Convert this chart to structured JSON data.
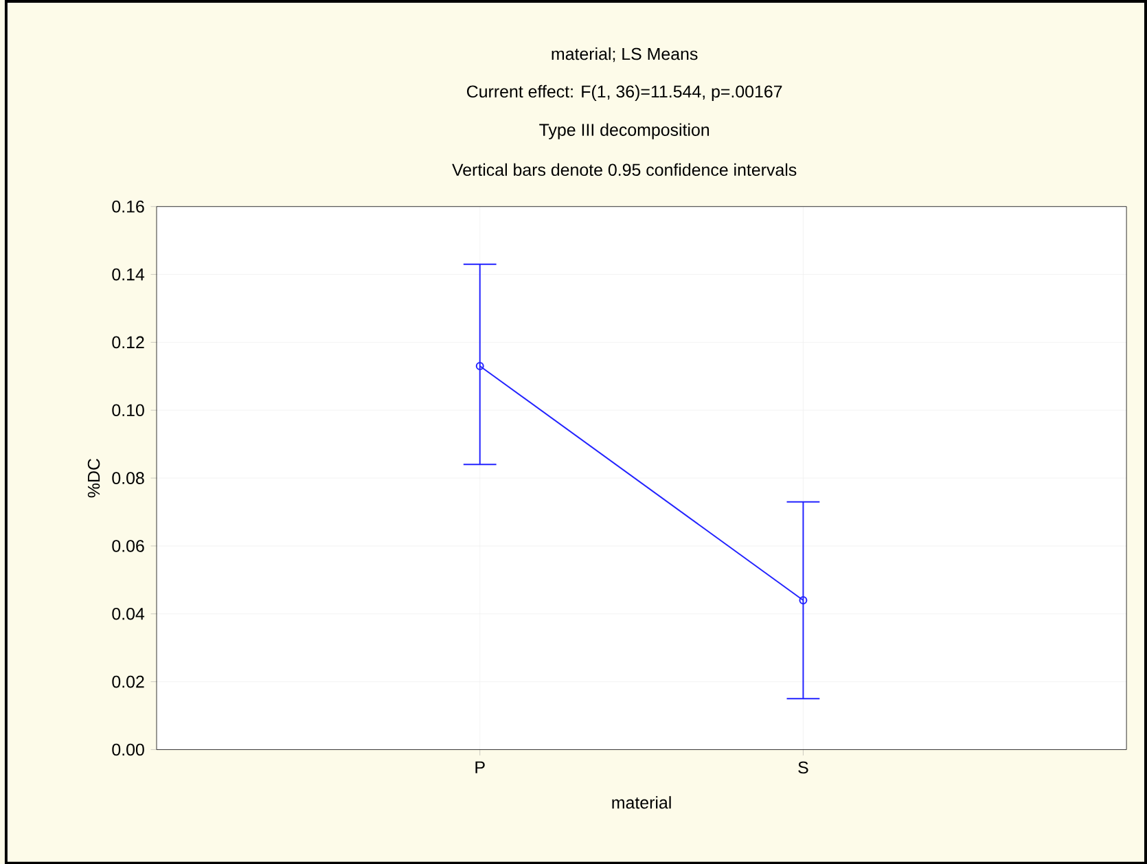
{
  "chart_data": {
    "type": "line",
    "title": "material; LS Means",
    "subtitle": "Current effect: F(1, 36)=11.544, p=.00167",
    "annotations": [
      "Type III decomposition",
      "Vertical bars denote 0.95 confidence intervals"
    ],
    "xlabel": "material",
    "ylabel": "%DC",
    "categories": [
      "P",
      "S"
    ],
    "series": [
      {
        "color": "#2222ff",
        "values": [
          0.113,
          0.044
        ],
        "errors": [
          [
            0.084,
            0.143
          ],
          [
            0.015,
            0.073
          ]
        ]
      }
    ],
    "ylim": [
      0,
      0.16
    ],
    "yticks": [
      {
        "value": 0,
        "label": "0.00"
      },
      {
        "value": 0.02,
        "label": "0.02"
      },
      {
        "value": 0.04,
        "label": "0.04"
      },
      {
        "value": 0.06,
        "label": "0.06"
      },
      {
        "value": 0.08,
        "label": "0.08"
      },
      {
        "value": 0.1,
        "label": "0.10"
      },
      {
        "value": 0.12,
        "label": "0.12"
      },
      {
        "value": 0.14,
        "label": "0.14"
      },
      {
        "value": 0.16,
        "label": "0.16"
      }
    ],
    "grid": true,
    "marker": "circle",
    "line_style": "solid"
  }
}
